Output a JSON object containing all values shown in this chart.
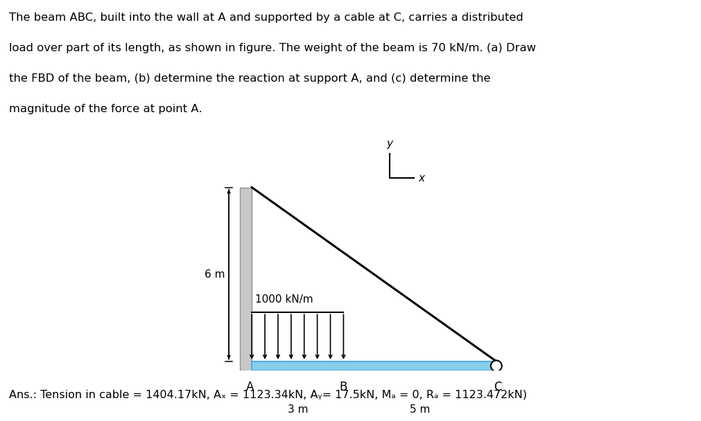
{
  "title_text_line1": "The beam ABC, built into the wall at A and supported by a cable at C, carries a distributed",
  "title_text_line2": "load over part of its length, as shown in figure. The weight of the beam is 70 kN/m. (a) Draw",
  "title_text_line3": "the FBD of the beam, (b) determine the reaction at support A, and (c) determine the",
  "title_text_line4": "magnitude of the force at point A.",
  "answer_text": "Ans.: Tension in cable = 1404.17kN, Aₓ = 1123.34kN, Aᵧ= 17.5kN, Mₐ = 0, Rₐ = 1123.472kN)",
  "bg_color": "#ffffff",
  "wall_color": "#c8c8c8",
  "beam_color": "#87ceeb",
  "text_color": "#000000",
  "n_load_arrows": 8,
  "label_6m": "6 m",
  "label_1000": "1000 kN/m",
  "label_3m": "3 m",
  "label_5m": "5 m",
  "label_A": "A",
  "label_B": "B",
  "label_C": "C",
  "label_x": "x",
  "label_y": "y"
}
